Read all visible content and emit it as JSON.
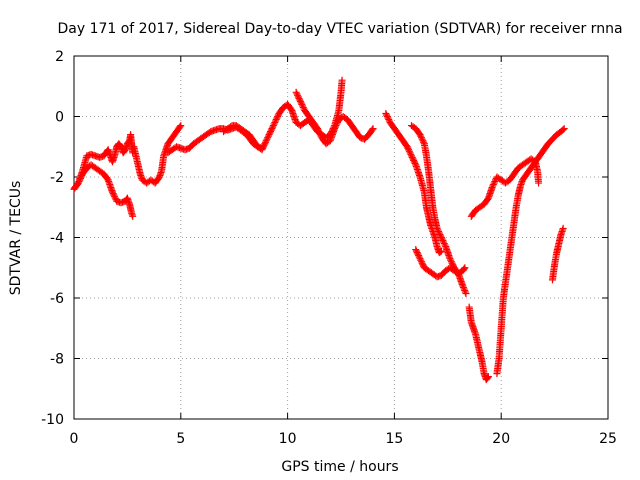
{
  "chart_data": {
    "type": "scatter",
    "title": "Day 171 of 2017, Sidereal Day-to-day VTEC variation (SDTVAR) for receiver rnna",
    "xlabel": "GPS time / hours",
    "ylabel": "SDTVAR / TECUs",
    "xlim": [
      0,
      25
    ],
    "ylim": [
      -10,
      2
    ],
    "xticks": [
      "0",
      "5",
      "10",
      "15",
      "20",
      "25"
    ],
    "yticks": [
      "2",
      "0",
      "-2",
      "-4",
      "-6",
      "-8",
      "-10"
    ],
    "grid": true,
    "marker": "plus",
    "marker_color": "#ff0000",
    "segments": [
      [
        [
          0.0,
          -2.4
        ],
        [
          0.2,
          -2.2
        ],
        [
          0.4,
          -1.8
        ],
        [
          0.6,
          -1.3
        ],
        [
          0.8,
          -1.25
        ],
        [
          1.0,
          -1.3
        ],
        [
          1.2,
          -1.35
        ],
        [
          1.4,
          -1.3
        ],
        [
          1.5,
          -1.2
        ],
        [
          1.6,
          -1.1
        ],
        [
          1.7,
          -1.3
        ],
        [
          1.8,
          -1.5
        ],
        [
          1.9,
          -1.3
        ],
        [
          2.0,
          -1.0
        ],
        [
          2.1,
          -0.9
        ],
        [
          2.2,
          -1.0
        ],
        [
          2.3,
          -1.2
        ],
        [
          2.4,
          -1.1
        ],
        [
          2.5,
          -0.9
        ],
        [
          2.6,
          -0.8
        ],
        [
          2.65,
          -0.6
        ],
        [
          2.7,
          -0.9
        ],
        [
          2.75,
          -1.2
        ]
      ],
      [
        [
          0.0,
          -2.4
        ],
        [
          0.2,
          -2.2
        ],
        [
          0.4,
          -1.9
        ],
        [
          0.6,
          -1.7
        ],
        [
          0.8,
          -1.6
        ],
        [
          1.0,
          -1.7
        ],
        [
          1.2,
          -1.8
        ],
        [
          1.4,
          -1.9
        ],
        [
          1.6,
          -2.1
        ],
        [
          1.8,
          -2.5
        ],
        [
          2.0,
          -2.8
        ],
        [
          2.2,
          -2.85
        ],
        [
          2.4,
          -2.8
        ],
        [
          2.5,
          -2.7
        ],
        [
          2.6,
          -2.9
        ],
        [
          2.7,
          -3.2
        ],
        [
          2.75,
          -3.3
        ]
      ],
      [
        [
          2.8,
          -1.0
        ],
        [
          3.0,
          -1.6
        ],
        [
          3.1,
          -1.9
        ],
        [
          3.2,
          -2.1
        ],
        [
          3.4,
          -2.2
        ],
        [
          3.6,
          -2.1
        ],
        [
          3.8,
          -2.2
        ],
        [
          4.0,
          -2.0
        ],
        [
          4.1,
          -1.8
        ],
        [
          4.2,
          -1.3
        ],
        [
          4.4,
          -0.9
        ],
        [
          4.6,
          -0.7
        ],
        [
          4.8,
          -0.5
        ],
        [
          5.0,
          -0.3
        ]
      ],
      [
        [
          4.4,
          -1.2
        ],
        [
          4.6,
          -1.1
        ],
        [
          4.8,
          -1.0
        ],
        [
          5.0,
          -1.05
        ],
        [
          5.2,
          -1.1
        ],
        [
          5.4,
          -1.05
        ],
        [
          5.6,
          -0.9
        ],
        [
          5.8,
          -0.8
        ],
        [
          6.0,
          -0.7
        ],
        [
          6.2,
          -0.6
        ],
        [
          6.4,
          -0.5
        ],
        [
          6.6,
          -0.45
        ],
        [
          6.8,
          -0.4
        ],
        [
          7.0,
          -0.4
        ],
        [
          7.2,
          -0.45
        ],
        [
          7.4,
          -0.4
        ],
        [
          7.6,
          -0.35
        ],
        [
          7.8,
          -0.45
        ],
        [
          8.0,
          -0.55
        ],
        [
          8.2,
          -0.7
        ],
        [
          8.4,
          -0.9
        ],
        [
          8.6,
          -1.0
        ],
        [
          8.8,
          -1.05
        ]
      ],
      [
        [
          7.0,
          -0.5
        ],
        [
          7.2,
          -0.4
        ],
        [
          7.4,
          -0.3
        ],
        [
          7.6,
          -0.3
        ],
        [
          7.8,
          -0.4
        ],
        [
          8.0,
          -0.5
        ],
        [
          8.2,
          -0.6
        ],
        [
          8.4,
          -0.8
        ],
        [
          8.6,
          -1.0
        ],
        [
          8.8,
          -1.1
        ],
        [
          9.0,
          -0.8
        ],
        [
          9.2,
          -0.5
        ],
        [
          9.4,
          -0.2
        ],
        [
          9.6,
          0.1
        ],
        [
          9.8,
          0.3
        ],
        [
          10.0,
          0.4
        ],
        [
          10.2,
          0.2
        ],
        [
          10.4,
          -0.2
        ],
        [
          10.6,
          -0.3
        ],
        [
          10.8,
          -0.2
        ],
        [
          11.0,
          -0.1
        ],
        [
          11.2,
          -0.3
        ],
        [
          11.4,
          -0.5
        ],
        [
          11.6,
          -0.6
        ],
        [
          11.8,
          -0.7
        ],
        [
          12.0,
          -0.6
        ],
        [
          12.2,
          -0.3
        ],
        [
          12.4,
          0.2
        ],
        [
          12.5,
          0.8
        ],
        [
          12.55,
          1.2
        ]
      ],
      [
        [
          10.4,
          0.8
        ],
        [
          10.6,
          0.5
        ],
        [
          10.8,
          0.2
        ],
        [
          11.0,
          0.0
        ],
        [
          11.2,
          -0.2
        ],
        [
          11.4,
          -0.4
        ],
        [
          11.6,
          -0.7
        ],
        [
          11.8,
          -0.9
        ],
        [
          12.0,
          -0.8
        ],
        [
          12.2,
          -0.4
        ],
        [
          12.4,
          -0.1
        ],
        [
          12.6,
          0.0
        ],
        [
          12.8,
          -0.1
        ],
        [
          13.0,
          -0.3
        ],
        [
          13.2,
          -0.5
        ],
        [
          13.4,
          -0.7
        ],
        [
          13.6,
          -0.75
        ],
        [
          13.8,
          -0.6
        ],
        [
          14.0,
          -0.4
        ]
      ],
      [
        [
          14.6,
          0.1
        ],
        [
          14.8,
          -0.2
        ],
        [
          15.0,
          -0.4
        ],
        [
          15.2,
          -0.6
        ],
        [
          15.4,
          -0.8
        ],
        [
          15.6,
          -1.0
        ],
        [
          15.8,
          -1.3
        ],
        [
          16.0,
          -1.6
        ],
        [
          16.2,
          -2.0
        ],
        [
          16.4,
          -2.5
        ],
        [
          16.5,
          -3.0
        ],
        [
          16.6,
          -3.3
        ],
        [
          16.7,
          -3.6
        ],
        [
          16.8,
          -3.8
        ],
        [
          16.9,
          -4.0
        ],
        [
          17.0,
          -4.3
        ],
        [
          17.1,
          -4.5
        ],
        [
          17.2,
          -4.45
        ]
      ],
      [
        [
          15.8,
          -0.3
        ],
        [
          16.0,
          -0.4
        ],
        [
          16.2,
          -0.6
        ],
        [
          16.4,
          -0.9
        ],
        [
          16.5,
          -1.3
        ],
        [
          16.6,
          -1.8
        ],
        [
          16.7,
          -2.4
        ],
        [
          16.8,
          -3.0
        ],
        [
          16.9,
          -3.4
        ],
        [
          17.0,
          -3.7
        ],
        [
          17.2,
          -4.0
        ],
        [
          17.4,
          -4.3
        ],
        [
          17.6,
          -4.7
        ],
        [
          17.8,
          -5.0
        ],
        [
          18.0,
          -5.2
        ],
        [
          18.2,
          -5.6
        ],
        [
          18.35,
          -5.85
        ]
      ],
      [
        [
          16.0,
          -4.4
        ],
        [
          16.2,
          -4.7
        ],
        [
          16.4,
          -5.0
        ],
        [
          16.6,
          -5.1
        ],
        [
          16.8,
          -5.2
        ],
        [
          17.0,
          -5.3
        ],
        [
          17.2,
          -5.25
        ],
        [
          17.4,
          -5.1
        ],
        [
          17.6,
          -5.0
        ],
        [
          17.8,
          -5.1
        ],
        [
          18.0,
          -5.2
        ],
        [
          18.2,
          -5.1
        ],
        [
          18.3,
          -5.0
        ]
      ],
      [
        [
          18.5,
          -6.3
        ],
        [
          18.6,
          -6.8
        ],
        [
          18.8,
          -7.2
        ],
        [
          19.0,
          -7.8
        ],
        [
          19.1,
          -8.1
        ],
        [
          19.2,
          -8.5
        ],
        [
          19.3,
          -8.7
        ],
        [
          19.4,
          -8.6
        ]
      ],
      [
        [
          19.8,
          -8.5
        ],
        [
          19.9,
          -8.0
        ],
        [
          20.0,
          -7.0
        ],
        [
          20.1,
          -6.0
        ],
        [
          20.2,
          -5.5
        ],
        [
          20.3,
          -5.0
        ],
        [
          20.4,
          -4.5
        ],
        [
          20.5,
          -4.0
        ],
        [
          20.6,
          -3.5
        ],
        [
          20.7,
          -3.0
        ],
        [
          20.8,
          -2.6
        ],
        [
          20.9,
          -2.3
        ],
        [
          21.0,
          -2.1
        ],
        [
          21.2,
          -1.9
        ],
        [
          21.4,
          -1.7
        ],
        [
          21.6,
          -1.5
        ],
        [
          21.8,
          -1.3
        ],
        [
          22.0,
          -1.1
        ],
        [
          22.2,
          -0.9
        ],
        [
          22.4,
          -0.75
        ],
        [
          22.6,
          -0.6
        ],
        [
          22.8,
          -0.5
        ],
        [
          22.95,
          -0.4
        ]
      ],
      [
        [
          18.6,
          -3.3
        ],
        [
          18.8,
          -3.1
        ],
        [
          19.0,
          -3.0
        ],
        [
          19.2,
          -2.9
        ],
        [
          19.4,
          -2.7
        ],
        [
          19.6,
          -2.3
        ],
        [
          19.8,
          -2.0
        ],
        [
          20.0,
          -2.1
        ],
        [
          20.2,
          -2.2
        ],
        [
          20.4,
          -2.1
        ],
        [
          20.6,
          -1.9
        ],
        [
          20.8,
          -1.7
        ],
        [
          21.0,
          -1.6
        ],
        [
          21.2,
          -1.5
        ],
        [
          21.4,
          -1.4
        ],
        [
          21.6,
          -1.5
        ],
        [
          21.7,
          -1.8
        ],
        [
          21.75,
          -2.2
        ]
      ],
      [
        [
          22.4,
          -5.4
        ],
        [
          22.5,
          -4.9
        ],
        [
          22.6,
          -4.5
        ],
        [
          22.7,
          -4.2
        ],
        [
          22.8,
          -3.9
        ],
        [
          22.9,
          -3.7
        ]
      ]
    ]
  }
}
